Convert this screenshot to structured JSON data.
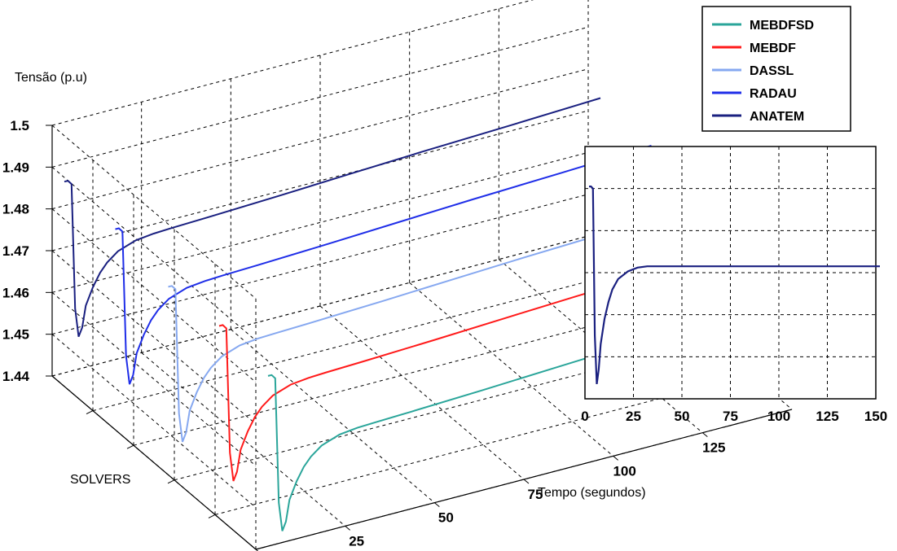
{
  "chart_data": [
    {
      "type": "line",
      "projection": "3d-waterfall",
      "ylabel": "Tensão (p.u)",
      "xlabel": "Tempo (segundos)",
      "zlabel": "SOLVERS",
      "y_ticks": [
        "1.5",
        "1.49",
        "1.48",
        "1.47",
        "1.46",
        "1.45",
        "1.44"
      ],
      "x_ticks": [
        "0",
        "25",
        "50",
        "75",
        "100",
        "125"
      ],
      "ylim": [
        1.44,
        1.5
      ],
      "xlim": [
        0,
        150
      ],
      "grid": true,
      "series": [
        {
          "name": "MEBDFSD",
          "color": "#2aa59a",
          "depth_index": 0
        },
        {
          "name": "MEBDF",
          "color": "#ff1a1a",
          "depth_index": 1
        },
        {
          "name": "DASSL",
          "color": "#86a8f0",
          "depth_index": 2
        },
        {
          "name": "RADAU",
          "color": "#1f2ee8",
          "depth_index": 3
        },
        {
          "name": "ANATEM",
          "color": "#1a2080",
          "depth_index": 4
        }
      ],
      "curve_samples": {
        "x": [
          0,
          1,
          2,
          3,
          4,
          5,
          6,
          8,
          10,
          12,
          15,
          20,
          25,
          30,
          40,
          60,
          80,
          100,
          125,
          150
        ],
        "y": [
          1.489,
          1.489,
          1.488,
          1.458,
          1.451,
          1.453,
          1.458,
          1.462,
          1.465,
          1.467,
          1.469,
          1.4705,
          1.471,
          1.4712,
          1.4715,
          1.4722,
          1.473,
          1.4738,
          1.4746,
          1.4755
        ]
      }
    },
    {
      "type": "line",
      "projection": "2d-inset",
      "x_ticks": [
        "0",
        "25",
        "50",
        "75",
        "100",
        "125",
        "150"
      ],
      "xlim": [
        0,
        150
      ],
      "ylim": [
        1.44,
        1.5
      ],
      "grid": true,
      "series": [
        {
          "name": "ANATEM",
          "color": "#1a2080",
          "x": [
            0,
            1,
            2,
            3,
            4,
            5,
            6,
            8,
            10,
            12,
            15,
            20,
            25,
            30,
            40,
            60,
            80,
            100,
            125,
            150
          ],
          "y": [
            1.4905,
            1.4905,
            1.49,
            1.455,
            1.4435,
            1.447,
            1.453,
            1.459,
            1.463,
            1.466,
            1.4685,
            1.4703,
            1.4712,
            1.4715,
            1.4715,
            1.4715,
            1.4715,
            1.4715,
            1.4715,
            1.4715
          ]
        }
      ]
    }
  ],
  "legend": {
    "placement": "top-right",
    "entries": [
      {
        "label": "MEBDFSD",
        "color": "#2aa59a"
      },
      {
        "label": "MEBDF",
        "color": "#ff1a1a"
      },
      {
        "label": "DASSL",
        "color": "#86a8f0"
      },
      {
        "label": "RADAU",
        "color": "#1f2ee8"
      },
      {
        "label": "ANATEM",
        "color": "#1a2080"
      }
    ]
  }
}
